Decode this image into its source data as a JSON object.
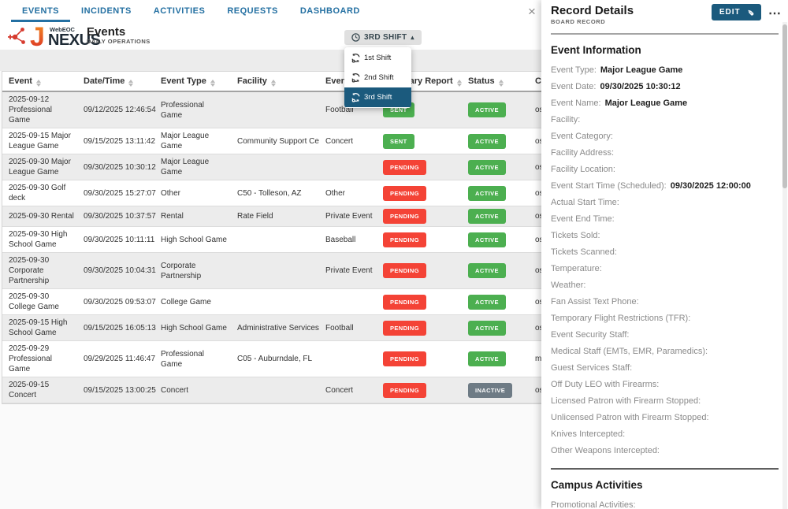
{
  "nav": {
    "tabs": [
      {
        "label": "EVENTS",
        "active": true
      },
      {
        "label": "INCIDENTS",
        "active": false
      },
      {
        "label": "ACTIVITIES",
        "active": false
      },
      {
        "label": "REQUESTS",
        "active": false
      },
      {
        "label": "DASHBOARD",
        "active": false
      }
    ]
  },
  "brand": {
    "product": "WebEOC",
    "name": "NEXUS"
  },
  "page": {
    "title": "Events",
    "subtitle": "DAILY OPERATIONS"
  },
  "shift": {
    "button_label": "3RD SHIFT",
    "items": [
      "1st Shift",
      "2nd Shift",
      "3rd Shift"
    ],
    "selected": "3rd Shift"
  },
  "icons": {
    "caret_up": "▴",
    "close": "×",
    "more": "⋯",
    "pencil": "✎"
  },
  "table": {
    "columns": [
      "Event",
      "Date/Time",
      "Event Type",
      "Facility",
      "Event Category",
      "Summary Report",
      "Status",
      "Created"
    ],
    "badge_styles": {
      "SENT": "green",
      "PENDING": "red",
      "ACTIVE": "green",
      "INACTIVE": "gray"
    },
    "rows": [
      {
        "event": "2025-09-12 Professional Game",
        "datetime": "09/12/2025 12:46:54",
        "type": "Professional Game",
        "facility": "",
        "category": "Football",
        "report": "SENT",
        "status": "ACTIVE",
        "created": "osc"
      },
      {
        "event": "2025-09-15 Major League Game",
        "datetime": "09/15/2025 13:11:42",
        "type": "Major League Game",
        "facility": "Community Support Center",
        "category": "Concert",
        "report": "SENT",
        "status": "ACTIVE",
        "created": "osc"
      },
      {
        "event": "2025-09-30 Major League Game",
        "datetime": "09/30/2025 10:30:12",
        "type": "Major League Game",
        "facility": "",
        "category": "",
        "report": "PENDING",
        "status": "ACTIVE",
        "created": "osc"
      },
      {
        "event": "2025-09-30 Golf deck",
        "datetime": "09/30/2025 15:27:07",
        "type": "Other",
        "facility": "C50 - Tolleson, AZ",
        "category": "Other",
        "report": "PENDING",
        "status": "ACTIVE",
        "created": "osc"
      },
      {
        "event": "2025-09-30 Rental",
        "datetime": "09/30/2025 10:37:57",
        "type": "Rental",
        "facility": "Rate Field",
        "category": "Private Event",
        "report": "PENDING",
        "status": "ACTIVE",
        "created": "osc"
      },
      {
        "event": "2025-09-30 High School Game",
        "datetime": "09/30/2025 10:11:11",
        "type": "High School Game",
        "facility": "",
        "category": "Baseball",
        "report": "PENDING",
        "status": "ACTIVE",
        "created": "osc"
      },
      {
        "event": "2025-09-30 Corporate Partnership",
        "datetime": "09/30/2025 10:04:31",
        "type": "Corporate Partnership",
        "facility": "",
        "category": "Private Event",
        "report": "PENDING",
        "status": "ACTIVE",
        "created": "osc"
      },
      {
        "event": "2025-09-30 College Game",
        "datetime": "09/30/2025 09:53:07",
        "type": "College Game",
        "facility": "",
        "category": "",
        "report": "PENDING",
        "status": "ACTIVE",
        "created": "osc"
      },
      {
        "event": "2025-09-15 High School Game",
        "datetime": "09/15/2025 16:05:13",
        "type": "High School Game",
        "facility": "Administrative Services Hub",
        "category": "Football",
        "report": "PENDING",
        "status": "ACTIVE",
        "created": "osc"
      },
      {
        "event": "2025-09-29 Professional Game",
        "datetime": "09/29/2025 11:46:47",
        "type": "Professional Game",
        "facility": "C05 - Auburndale, FL",
        "category": "",
        "report": "PENDING",
        "status": "ACTIVE",
        "created": "ma"
      },
      {
        "event": "2025-09-15 Concert",
        "datetime": "09/15/2025 13:00:25",
        "type": "Concert",
        "facility": "",
        "category": "Concert",
        "report": "PENDING",
        "status": "INACTIVE",
        "created": "osc"
      }
    ]
  },
  "panel": {
    "title": "Record Details",
    "subtitle": "BOARD RECORD",
    "edit_label": "EDIT",
    "sections": [
      {
        "heading": "Event Information",
        "fields": [
          {
            "label": "Event Type:",
            "value": "Major League Game"
          },
          {
            "label": "Event Date:",
            "value": "09/30/2025 10:30:12"
          },
          {
            "label": "Event Name:",
            "value": "Major League Game"
          },
          {
            "label": "Facility:",
            "value": ""
          },
          {
            "label": "Event Category:",
            "value": ""
          },
          {
            "label": "Facility Address:",
            "value": ""
          },
          {
            "label": "Facility Location:",
            "value": ""
          },
          {
            "label": "Event Start Time (Scheduled):",
            "value": "09/30/2025 12:00:00"
          },
          {
            "label": "Actual Start Time:",
            "value": ""
          },
          {
            "label": "Event End Time:",
            "value": ""
          },
          {
            "label": "Tickets Sold:",
            "value": ""
          },
          {
            "label": "Tickets Scanned:",
            "value": ""
          },
          {
            "label": "Temperature:",
            "value": ""
          },
          {
            "label": "Weather:",
            "value": ""
          },
          {
            "label": "Fan Assist Text Phone:",
            "value": ""
          },
          {
            "label": "Temporary Flight Restrictions (TFR):",
            "value": ""
          },
          {
            "label": "Event Security Staff:",
            "value": ""
          },
          {
            "label": "Medical Staff (EMTs, EMR, Paramedics):",
            "value": ""
          },
          {
            "label": "Guest Services Staff:",
            "value": ""
          },
          {
            "label": "Off Duty LEO with Firearms:",
            "value": ""
          },
          {
            "label": "Licensed Patron with Firearm Stopped:",
            "value": ""
          },
          {
            "label": "Unlicensed Patron with Firearm Stopped:",
            "value": ""
          },
          {
            "label": "Knives Intercepted:",
            "value": ""
          },
          {
            "label": "Other Weapons Intercepted:",
            "value": ""
          }
        ]
      },
      {
        "heading": "Campus Activities",
        "fields": [
          {
            "label": "Promotional Activities:",
            "value": ""
          }
        ]
      }
    ]
  },
  "colors": {
    "accent_blue": "#2470a2",
    "dark_teal": "#1b5a7d",
    "badge_green": "#4caf50",
    "badge_red": "#f44336",
    "badge_gray": "#6e7b85",
    "brand_red": "#d63b2f",
    "brand_orange": "#f59120"
  }
}
